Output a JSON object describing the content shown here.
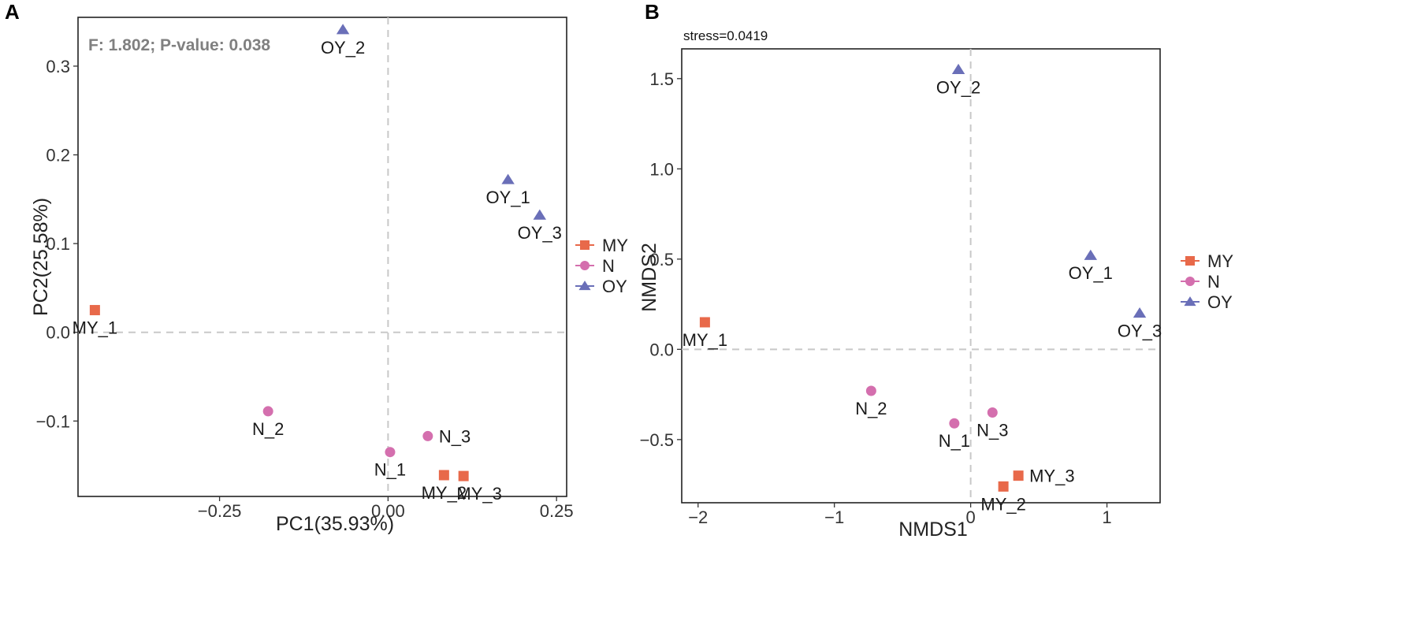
{
  "chart_data": [
    {
      "type": "scatter",
      "panel": "A",
      "annotation": "F: 1.802;  P-value: 0.038",
      "xlabel": "PC1(35.93%)",
      "ylabel": "PC2(25.58%)",
      "xlim": [
        -0.46,
        0.265
      ],
      "ylim": [
        -0.185,
        0.355
      ],
      "xticks": [
        -0.25,
        0.0,
        0.25
      ],
      "xtick_labels": [
        "−0.25",
        "0.00",
        "0.25"
      ],
      "yticks": [
        -0.1,
        0.0,
        0.1,
        0.2,
        0.3
      ],
      "ytick_labels": [
        "−0.1",
        "0.0",
        "0.1",
        "0.2",
        "0.3"
      ],
      "reference_lines": {
        "x": 0,
        "y": 0
      },
      "points": [
        {
          "label": "MY_1",
          "group": "MY",
          "x": -0.435,
          "y": 0.025,
          "label_pos": "below"
        },
        {
          "label": "MY_2",
          "group": "MY",
          "x": 0.083,
          "y": -0.161,
          "label_pos": "below"
        },
        {
          "label": "MY_3",
          "group": "MY",
          "x": 0.112,
          "y": -0.162,
          "label_pos": "below-right"
        },
        {
          "label": "N_1",
          "group": "N",
          "x": 0.003,
          "y": -0.135,
          "label_pos": "below"
        },
        {
          "label": "N_2",
          "group": "N",
          "x": -0.178,
          "y": -0.089,
          "label_pos": "below"
        },
        {
          "label": "N_3",
          "group": "N",
          "x": 0.059,
          "y": -0.117,
          "label_pos": "right"
        },
        {
          "label": "OY_1",
          "group": "OY",
          "x": 0.178,
          "y": 0.172,
          "label_pos": "below"
        },
        {
          "label": "OY_2",
          "group": "OY",
          "x": -0.067,
          "y": 0.341,
          "label_pos": "below"
        },
        {
          "label": "OY_3",
          "group": "OY",
          "x": 0.225,
          "y": 0.132,
          "label_pos": "below"
        }
      ],
      "legend": [
        {
          "label": "MY",
          "shape": "square",
          "color": "#e8694a"
        },
        {
          "label": "N",
          "shape": "circle",
          "color": "#d46fae"
        },
        {
          "label": "OY",
          "shape": "triangle",
          "color": "#6a6fb8"
        }
      ],
      "legend_position": "right"
    },
    {
      "type": "scatter",
      "panel": "B",
      "annotation": "stress=0.0419",
      "xlabel": "NMDS1",
      "ylabel": "NMDS2",
      "xlim": [
        -2.12,
        1.39
      ],
      "ylim": [
        -0.85,
        1.665
      ],
      "xticks": [
        -2,
        -1,
        0,
        1
      ],
      "xtick_labels": [
        "−2",
        "−1",
        "0",
        "1"
      ],
      "yticks": [
        -0.5,
        0.0,
        0.5,
        1.0,
        1.5
      ],
      "ytick_labels": [
        "−0.5",
        "0.0",
        "0.5",
        "1.0",
        "1.5"
      ],
      "reference_lines": {
        "x": 0,
        "y": 0
      },
      "points": [
        {
          "label": "MY_1",
          "group": "MY",
          "x": -1.95,
          "y": 0.15,
          "label_pos": "below"
        },
        {
          "label": "MY_2",
          "group": "MY",
          "x": 0.24,
          "y": -0.76,
          "label_pos": "below"
        },
        {
          "label": "MY_3",
          "group": "MY",
          "x": 0.35,
          "y": -0.7,
          "label_pos": "right"
        },
        {
          "label": "N_1",
          "group": "N",
          "x": -0.12,
          "y": -0.41,
          "label_pos": "below"
        },
        {
          "label": "N_2",
          "group": "N",
          "x": -0.73,
          "y": -0.23,
          "label_pos": "below"
        },
        {
          "label": "N_3",
          "group": "N",
          "x": 0.16,
          "y": -0.35,
          "label_pos": "below"
        },
        {
          "label": "OY_1",
          "group": "OY",
          "x": 0.88,
          "y": 0.52,
          "label_pos": "below"
        },
        {
          "label": "OY_2",
          "group": "OY",
          "x": -0.09,
          "y": 1.55,
          "label_pos": "below"
        },
        {
          "label": "OY_3",
          "group": "OY",
          "x": 1.24,
          "y": 0.2,
          "label_pos": "below"
        }
      ],
      "legend": [
        {
          "label": "MY",
          "shape": "square",
          "color": "#e8694a"
        },
        {
          "label": "N",
          "shape": "circle",
          "color": "#d46fae"
        },
        {
          "label": "OY",
          "shape": "triangle",
          "color": "#6a6fb8"
        }
      ],
      "legend_position": "right"
    }
  ]
}
